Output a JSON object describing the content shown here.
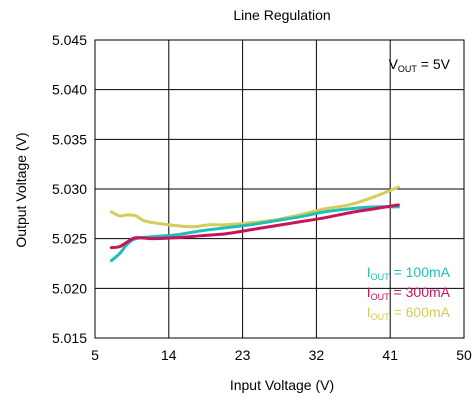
{
  "chart_data": {
    "type": "line",
    "title": "Line Regulation",
    "xlabel": "Input Voltage (V)",
    "ylabel": "Output Voltage (V)",
    "xlim": [
      5,
      50
    ],
    "ylim": [
      5.015,
      5.045
    ],
    "xticks": [
      5,
      14,
      23,
      32,
      41,
      50
    ],
    "yticks": [
      5.015,
      5.02,
      5.025,
      5.03,
      5.035,
      5.04,
      5.045
    ],
    "xtick_labels": [
      "5",
      "14",
      "23",
      "32",
      "41",
      "50"
    ],
    "ytick_labels": [
      "5.015",
      "5.020",
      "5.025",
      "5.030",
      "5.035",
      "5.040",
      "5.045"
    ],
    "grid": true,
    "annotation": {
      "main": "V",
      "sub": "OUT",
      "rest": " = 5V"
    },
    "legend_position": "bottom-right",
    "series": [
      {
        "name": "IOUT = 100mA",
        "legend": {
          "main": "I",
          "sub": "OUT",
          "rest": " = 100mA"
        },
        "color": "#1fbfb8",
        "x": [
          7,
          8,
          9,
          10,
          12,
          15,
          18,
          21,
          24,
          27,
          30,
          33,
          36,
          39,
          42
        ],
        "y": [
          5.0228,
          5.0235,
          5.0245,
          5.025,
          5.0252,
          5.0254,
          5.0258,
          5.0261,
          5.0264,
          5.0268,
          5.0272,
          5.0277,
          5.028,
          5.0282,
          5.0282
        ]
      },
      {
        "name": "IOUT = 300mA",
        "legend": {
          "main": "I",
          "sub": "OUT",
          "rest": " = 300mA"
        },
        "color": "#c8145a",
        "x": [
          7,
          8,
          9,
          10,
          12,
          15,
          18,
          21,
          24,
          27,
          30,
          33,
          36,
          39,
          42
        ],
        "y": [
          5.0241,
          5.0242,
          5.0247,
          5.0251,
          5.025,
          5.0251,
          5.0253,
          5.0255,
          5.0259,
          5.0263,
          5.0267,
          5.0271,
          5.0276,
          5.028,
          5.0284
        ]
      },
      {
        "name": "IOUT = 600mA",
        "legend": {
          "main": "I",
          "sub": "OUT",
          "rest": " = 600mA"
        },
        "color": "#d4cc5c",
        "x": [
          7,
          8,
          9,
          10,
          11,
          13,
          15,
          17,
          19,
          21,
          24,
          27,
          30,
          33,
          36,
          39,
          42
        ],
        "y": [
          5.0277,
          5.0273,
          5.0274,
          5.0273,
          5.0268,
          5.0265,
          5.0263,
          5.0262,
          5.0264,
          5.0264,
          5.0266,
          5.0269,
          5.0274,
          5.028,
          5.0284,
          5.0292,
          5.0302
        ]
      }
    ]
  }
}
